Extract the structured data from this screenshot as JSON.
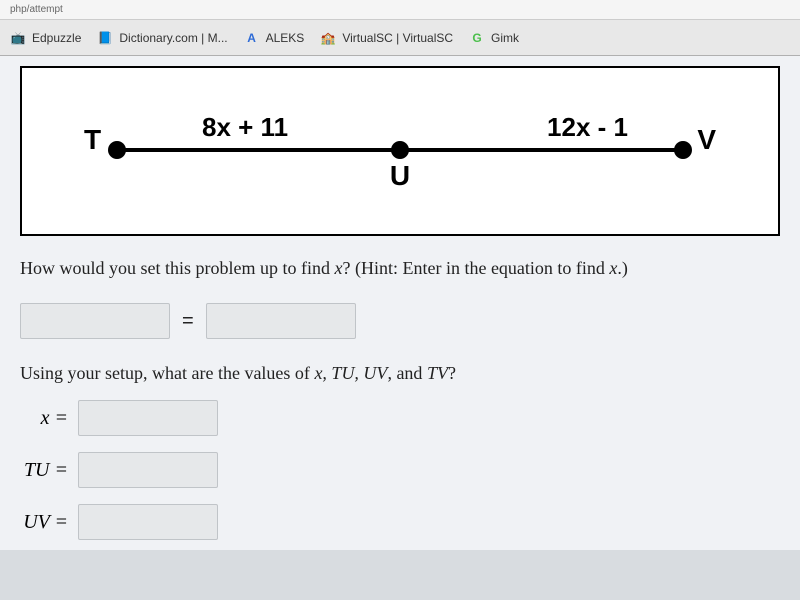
{
  "chrome": {
    "url_fragment": "php/attempt",
    "tabs": [
      {
        "label": "Edpuzzle",
        "icon": "📺"
      },
      {
        "label": "Dictionary.com | M...",
        "icon": "📘"
      },
      {
        "label": "ALEKS",
        "icon_text": "A"
      },
      {
        "label": "VirtualSC | VirtualSC",
        "icon": "🏫"
      },
      {
        "label": "Gimk",
        "icon_text": "G"
      }
    ]
  },
  "diagram": {
    "points": {
      "T": "T",
      "U": "U",
      "V": "V"
    },
    "seg_tu": "8x + 11",
    "seg_uv": "12x - 1"
  },
  "q1": {
    "text_a": "How would you set this problem up to find ",
    "var": "x",
    "text_b": "? (Hint: Enter in the equation to find ",
    "text_c": ".)"
  },
  "eq": {
    "sign": "="
  },
  "q2": {
    "text_a": "Using your setup, what are the values of ",
    "parts": "x, TU, UV",
    "text_b": ", and ",
    "last": "TV",
    "text_c": "?"
  },
  "answers": {
    "x": "x =",
    "tu": "TU =",
    "uv": "UV ="
  }
}
